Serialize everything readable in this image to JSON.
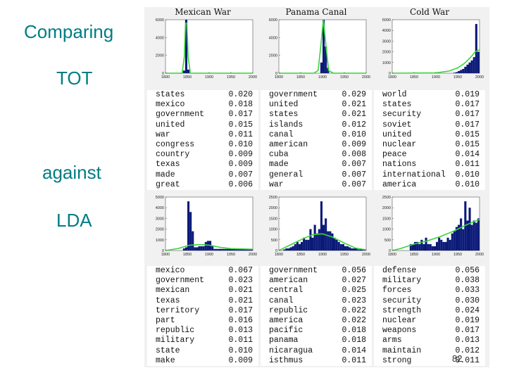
{
  "labels": {
    "comparing": "Comparing",
    "tot": "TOT",
    "against": "against",
    "lda": "LDA"
  },
  "page_number": "82",
  "colors": {
    "label": "#007d84",
    "bar": "#0b1a78",
    "curve": "#3ad33a"
  },
  "chart_data": [
    {
      "type": "bar",
      "title": "Mexican War",
      "row": "TOT",
      "x": [
        1835,
        1840,
        1845,
        1850,
        1855
      ],
      "values": [
        0,
        300,
        6000,
        400,
        0
      ],
      "xlim": [
        1800,
        2000
      ],
      "ylim": [
        0,
        6000
      ],
      "xticks": [
        "1800",
        "1850",
        "1900",
        "1950",
        "2000"
      ],
      "yticks": [
        "0",
        "2000",
        "4000",
        "6000"
      ],
      "curve": [
        [
          1800,
          0
        ],
        [
          1838,
          0
        ],
        [
          1843,
          1800
        ],
        [
          1846,
          5600
        ],
        [
          1849,
          5600
        ],
        [
          1852,
          1800
        ],
        [
          1857,
          0
        ],
        [
          2000,
          0
        ]
      ],
      "words": [
        "states",
        "mexico",
        "government",
        "united",
        "war",
        "congress",
        "country",
        "texas",
        "made",
        "great"
      ],
      "probs": [
        "0.020",
        "0.018",
        "0.017",
        "0.015",
        "0.011",
        "0.010",
        "0.009",
        "0.009",
        "0.007",
        "0.006"
      ]
    },
    {
      "type": "bar",
      "title": "Panama Canal",
      "row": "TOT",
      "x": [
        1895,
        1900,
        1905,
        1910
      ],
      "values": [
        1200,
        6300,
        3000,
        600
      ],
      "xlim": [
        1800,
        2000
      ],
      "ylim": [
        0,
        6000
      ],
      "xticks": [
        "1800",
        "1850",
        "1900",
        "1950",
        "2000"
      ],
      "yticks": [
        "0",
        "2000",
        "4000",
        "6000"
      ],
      "curve": [
        [
          1800,
          0
        ],
        [
          1880,
          0
        ],
        [
          1890,
          300
        ],
        [
          1896,
          3000
        ],
        [
          1902,
          6000
        ],
        [
          1908,
          3000
        ],
        [
          1914,
          300
        ],
        [
          1925,
          0
        ],
        [
          2000,
          0
        ]
      ],
      "words": [
        "government",
        "united",
        "states",
        "islands",
        "canal",
        "american",
        "cuba",
        "made",
        "general",
        "war"
      ],
      "probs": [
        "0.029",
        "0.021",
        "0.021",
        "0.012",
        "0.010",
        "0.009",
        "0.008",
        "0.007",
        "0.007",
        "0.007"
      ]
    },
    {
      "type": "bar",
      "title": "Cold War",
      "row": "TOT",
      "x": [
        1940,
        1945,
        1950,
        1955,
        1960,
        1965,
        1970,
        1975,
        1980,
        1985,
        1990,
        1995
      ],
      "values": [
        50,
        100,
        200,
        300,
        400,
        600,
        800,
        1000,
        1200,
        1500,
        4600,
        2000
      ],
      "xlim": [
        1800,
        2000
      ],
      "ylim": [
        0,
        5000
      ],
      "xticks": [
        "1800",
        "1850",
        "1900",
        "1950",
        "2000"
      ],
      "yticks": [
        "0",
        "1000",
        "2000",
        "3000",
        "4000",
        "5000"
      ],
      "curve": [
        [
          1800,
          0
        ],
        [
          1900,
          30
        ],
        [
          1930,
          200
        ],
        [
          1950,
          500
        ],
        [
          1965,
          900
        ],
        [
          1980,
          1500
        ],
        [
          1990,
          2000
        ],
        [
          2000,
          2200
        ]
      ],
      "words": [
        "world",
        "states",
        "security",
        "soviet",
        "united",
        "nuclear",
        "peace",
        "nations",
        "international",
        "america"
      ],
      "probs": [
        "0.019",
        "0.017",
        "0.017",
        "0.017",
        "0.015",
        "0.015",
        "0.014",
        "0.011",
        "0.010",
        "0.010"
      ]
    },
    {
      "type": "bar",
      "title": "",
      "row": "LDA",
      "x": [
        1800,
        1805,
        1810,
        1815,
        1820,
        1825,
        1830,
        1835,
        1840,
        1845,
        1850,
        1855,
        1860,
        1865,
        1870,
        1875,
        1880,
        1885,
        1890,
        1895,
        1900,
        1905,
        1910,
        1915,
        1920,
        1925,
        1930,
        1935,
        1940,
        1945,
        1950,
        1955,
        1960,
        1965,
        1970,
        1975,
        1980,
        1985,
        1990,
        1995
      ],
      "values": [
        0,
        0,
        0,
        0,
        0,
        0,
        0,
        0,
        200,
        300,
        4600,
        3600,
        1800,
        300,
        300,
        400,
        400,
        400,
        800,
        900,
        900,
        400,
        150,
        150,
        150,
        150,
        150,
        150,
        150,
        150,
        150,
        150,
        150,
        150,
        150,
        150,
        150,
        150,
        150,
        150
      ],
      "xlim": [
        1800,
        2000
      ],
      "ylim": [
        0,
        5000
      ],
      "xticks": [
        "1800",
        "1850",
        "1900",
        "1950",
        "2000"
      ],
      "yticks": [
        "0",
        "1000",
        "2000",
        "3000",
        "4000",
        "5000"
      ],
      "curve": [
        [
          1800,
          0
        ],
        [
          1830,
          200
        ],
        [
          1855,
          500
        ],
        [
          1880,
          550
        ],
        [
          1900,
          500
        ],
        [
          1925,
          300
        ],
        [
          1950,
          180
        ],
        [
          2000,
          120
        ]
      ],
      "words": [
        "mexico",
        "government",
        "mexican",
        "texas",
        "territory",
        "part",
        "republic",
        "military",
        "state",
        "make"
      ],
      "probs": [
        "0.067",
        "0.023",
        "0.021",
        "0.021",
        "0.017",
        "0.016",
        "0.013",
        "0.011",
        "0.010",
        "0.009"
      ]
    },
    {
      "type": "bar",
      "title": "",
      "row": "LDA",
      "x": [
        1800,
        1805,
        1810,
        1815,
        1820,
        1825,
        1830,
        1835,
        1840,
        1845,
        1850,
        1855,
        1860,
        1865,
        1870,
        1875,
        1880,
        1885,
        1890,
        1895,
        1900,
        1905,
        1910,
        1915,
        1920,
        1925,
        1930,
        1935,
        1940,
        1945,
        1950,
        1955,
        1960,
        1965,
        1970,
        1975,
        1980,
        1985,
        1990,
        1995
      ],
      "values": [
        0,
        0,
        50,
        100,
        100,
        150,
        200,
        300,
        400,
        300,
        400,
        600,
        500,
        500,
        1000,
        600,
        1200,
        800,
        1000,
        2300,
        1200,
        1500,
        900,
        900,
        800,
        600,
        500,
        400,
        300,
        300,
        200,
        200,
        150,
        100,
        100,
        100,
        50,
        50,
        50,
        50
      ],
      "xlim": [
        1800,
        2000
      ],
      "ylim": [
        0,
        2500
      ],
      "xticks": [
        "1800",
        "1850",
        "1900",
        "1950",
        "2000"
      ],
      "yticks": [
        "0",
        "500",
        "1000",
        "1500",
        "2000",
        "2500"
      ],
      "curve": [
        [
          1800,
          0
        ],
        [
          1830,
          300
        ],
        [
          1860,
          600
        ],
        [
          1880,
          750
        ],
        [
          1900,
          780
        ],
        [
          1920,
          650
        ],
        [
          1950,
          350
        ],
        [
          1975,
          120
        ],
        [
          2000,
          30
        ]
      ],
      "words": [
        "government",
        "american",
        "central",
        "canal",
        "republic",
        "america",
        "pacific",
        "panama",
        "nicaragua",
        "isthmus"
      ],
      "probs": [
        "0.056",
        "0.027",
        "0.025",
        "0.023",
        "0.022",
        "0.022",
        "0.018",
        "0.018",
        "0.014",
        "0.011"
      ]
    },
    {
      "type": "bar",
      "title": "",
      "row": "LDA",
      "x": [
        1800,
        1805,
        1810,
        1815,
        1820,
        1825,
        1830,
        1835,
        1840,
        1845,
        1850,
        1855,
        1860,
        1865,
        1870,
        1875,
        1880,
        1885,
        1890,
        1895,
        1900,
        1905,
        1910,
        1915,
        1920,
        1925,
        1930,
        1935,
        1940,
        1945,
        1950,
        1955,
        1960,
        1965,
        1970,
        1975,
        1980,
        1985,
        1990,
        1995
      ],
      "values": [
        0,
        0,
        0,
        0,
        0,
        0,
        0,
        0,
        300,
        300,
        400,
        400,
        300,
        500,
        300,
        600,
        300,
        300,
        200,
        200,
        400,
        600,
        500,
        400,
        400,
        600,
        500,
        800,
        900,
        1100,
        1200,
        1500,
        1000,
        2300,
        1400,
        2000,
        1200,
        1400,
        1300,
        1500
      ],
      "xlim": [
        1800,
        2000
      ],
      "ylim": [
        0,
        2500
      ],
      "xticks": [
        "1800",
        "1850",
        "1900",
        "1950",
        "2000"
      ],
      "yticks": [
        "0",
        "500",
        "1000",
        "1500",
        "2000",
        "2500"
      ],
      "curve": [
        [
          1800,
          0
        ],
        [
          1820,
          100
        ],
        [
          1850,
          300
        ],
        [
          1880,
          450
        ],
        [
          1910,
          650
        ],
        [
          1940,
          900
        ],
        [
          1970,
          1200
        ],
        [
          2000,
          1450
        ]
      ],
      "words": [
        "defense",
        "military",
        "forces",
        "security",
        "strength",
        "nuclear",
        "weapons",
        "arms",
        "maintain",
        "strong"
      ],
      "probs": [
        "0.056",
        "0.038",
        "0.033",
        "0.030",
        "0.024",
        "0.019",
        "0.017",
        "0.013",
        "0.012",
        "0.011"
      ]
    }
  ]
}
